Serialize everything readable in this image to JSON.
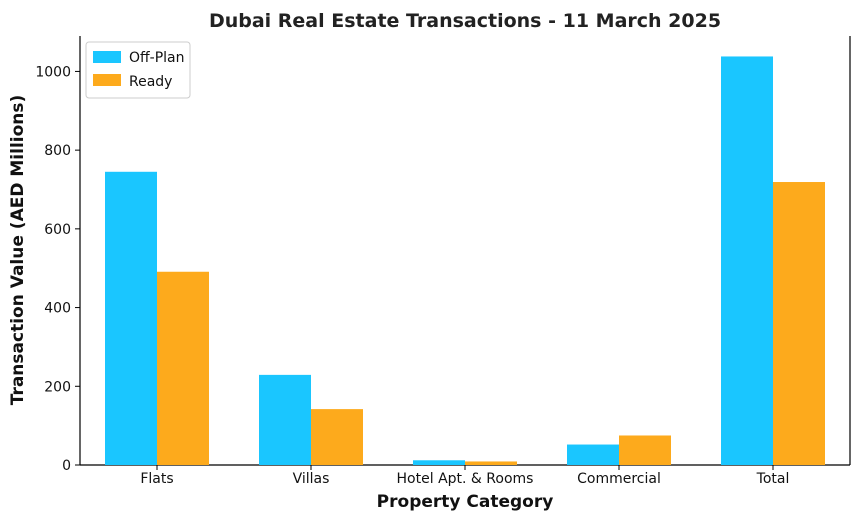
{
  "chart_data": {
    "type": "bar",
    "title": "Dubai Real Estate Transactions - 11 March 2025",
    "xlabel": "Property Category",
    "ylabel": "Transaction Value (AED Millions)",
    "categories": [
      "Flats",
      "Villas",
      "Hotel Apt. & Rooms",
      "Commercial",
      "Total"
    ],
    "series": [
      {
        "name": "Off-Plan",
        "color": "#1ac6ff",
        "values": [
          745,
          229,
          12,
          52,
          1038
        ]
      },
      {
        "name": "Ready",
        "color": "#fdaa1c",
        "values": [
          491,
          142,
          9,
          75,
          719
        ]
      }
    ],
    "ylim": [
      0,
      1090
    ],
    "yticks": [
      0,
      200,
      400,
      600,
      800,
      1000
    ],
    "grid": false,
    "legend_position": "top-left"
  }
}
